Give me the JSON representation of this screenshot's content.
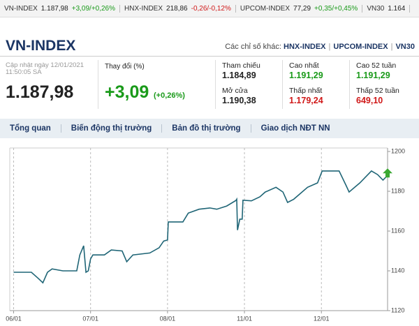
{
  "ticker": [
    {
      "name": "VN-INDEX",
      "value": "1.187,98",
      "change": "+3,09/+0,26%",
      "color": "#1a9a1a"
    },
    {
      "name": "HNX-INDEX",
      "value": "218,86",
      "change": "-0,26/-0,12%",
      "color": "#d01818"
    },
    {
      "name": "UPCOM-INDEX",
      "value": "77,29",
      "change": "+0,35/+0,45%",
      "color": "#1a9a1a"
    },
    {
      "name": "VN30",
      "value": "1.164"
    }
  ],
  "header": {
    "title": "VN-INDEX",
    "others_label": "Các chỉ số khác:",
    "others": [
      "HNX-INDEX",
      "UPCOM-INDEX",
      "VN30"
    ]
  },
  "info": {
    "updated": "Cập nhật ngày 12/01/2021 11:50:05 SA",
    "price": "1.187,98",
    "change_label": "Thay đổi (%)",
    "change": "+3,09",
    "change_pct": "(+0,26%)",
    "change_color": "#1a9a1a",
    "stats": [
      {
        "label": "Tham chiếu",
        "value": "1.184,89",
        "color": "#222222"
      },
      {
        "label": "Cao nhất",
        "value": "1.191,29",
        "color": "#1a9a1a"
      },
      {
        "label": "Cao 52 tuần",
        "value": "1.191,29",
        "color": "#1a9a1a"
      },
      {
        "label": "Mở cửa",
        "value": "1.190,38",
        "color": "#222222"
      },
      {
        "label": "Thấp nhất",
        "value": "1.179,24",
        "color": "#d01818"
      },
      {
        "label": "Thấp 52 tuần",
        "value": "649,10",
        "color": "#d01818"
      }
    ]
  },
  "nav": [
    "Tổng quan",
    "Biến động thị trường",
    "Bản đồ thị trường",
    "Giao dịch NĐT NN"
  ],
  "chart_data": {
    "type": "line",
    "color": "#1f6576",
    "grid": "x",
    "x": [
      0,
      0.23,
      0.32,
      0.38,
      0.44,
      0.5,
      0.64,
      0.82,
      0.86,
      0.91,
      0.94,
      0.97,
      1.0,
      1.03,
      1.18,
      1.27,
      1.41,
      1.47,
      1.55,
      1.77,
      1.89,
      1.95,
      2.0,
      2.01,
      2.2,
      2.27,
      2.41,
      2.55,
      2.64,
      2.77,
      2.89,
      2.9,
      2.91,
      2.94,
      2.97,
      2.98,
      3.09,
      3.2,
      3.27,
      3.41,
      3.5,
      3.56,
      3.64,
      3.82,
      3.95,
      4.01,
      4.23,
      4.32,
      4.36,
      4.5,
      4.65,
      4.73,
      4.8,
      4.86
    ],
    "values": [
      1139.3,
      1139.3,
      1136.2,
      1134,
      1139.3,
      1141,
      1140,
      1140,
      1148,
      1152.6,
      1139.3,
      1140,
      1146,
      1148,
      1148,
      1150.5,
      1150,
      1144.6,
      1148,
      1149,
      1151.6,
      1155,
      1155.5,
      1164.6,
      1164.6,
      1169,
      1171,
      1171.6,
      1171,
      1172.6,
      1175.4,
      1176,
      1160.5,
      1166,
      1166,
      1175.5,
      1175.2,
      1177.2,
      1179.6,
      1182,
      1179.6,
      1174.4,
      1176,
      1182,
      1184.2,
      1190.2,
      1190.2,
      1183,
      1179.6,
      1184.2,
      1190.2,
      1188.4,
      1185.6,
      1187.98
    ],
    "xlim": [
      -0.05,
      4.86
    ],
    "xticks": [
      {
        "value": 0,
        "label": "06/01"
      },
      {
        "value": 1,
        "label": "07/01"
      },
      {
        "value": 2,
        "label": "08/01"
      },
      {
        "value": 3,
        "label": "11/01"
      },
      {
        "value": 4,
        "label": "12/01"
      }
    ],
    "ylim": [
      1120,
      1200
    ],
    "yticks": [
      1120,
      1140,
      1160,
      1180,
      1200
    ]
  }
}
